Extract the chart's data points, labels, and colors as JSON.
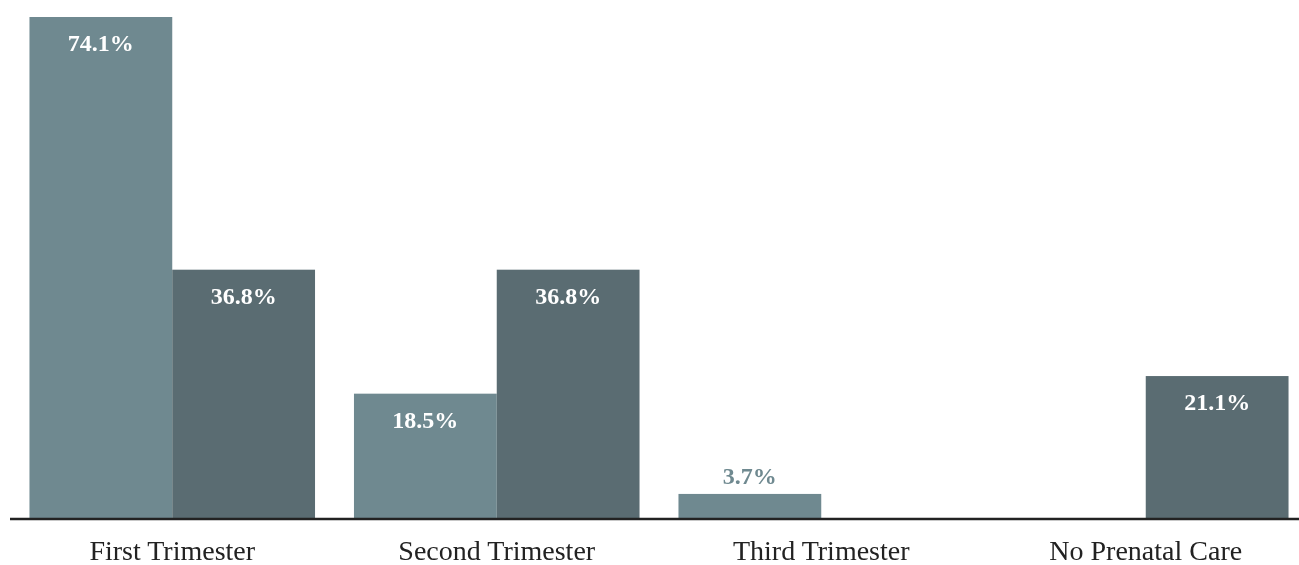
{
  "chart_data": {
    "type": "bar",
    "categories": [
      "First Trimester",
      "Second Trimester",
      "Third Trimester",
      "No Prenatal Care"
    ],
    "series": [
      {
        "color": "#6f8990",
        "values": [
          74.1,
          18.5,
          3.7,
          null
        ],
        "value_labels": [
          "74.1%",
          "18.5%",
          "3.7%",
          null
        ]
      },
      {
        "color": "#5a6c72",
        "values": [
          36.8,
          36.8,
          null,
          21.1
        ],
        "value_labels": [
          "36.8%",
          "36.8%",
          null,
          "21.1%"
        ]
      }
    ],
    "tick_labels": "x"
  }
}
